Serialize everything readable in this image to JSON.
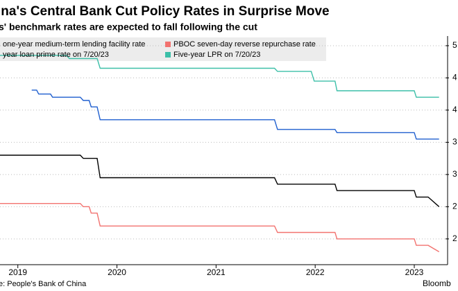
{
  "chart_data": {
    "type": "line",
    "title": "ina's Central Bank Cut Policy Rates in Surprise Move",
    "subtitle": "s' benchmark rates are expected to fall following the cut",
    "source": "e: People's Bank of China",
    "brand": "Bloomb",
    "xlim": [
      2018.82,
      2023.35
    ],
    "xticks": [
      2019,
      2020,
      2021,
      2022,
      2023
    ],
    "ylim": [
      1.6,
      5.15
    ],
    "yticks": [
      {
        "value": 5,
        "label": "5"
      },
      {
        "value": 4.5,
        "label": "4"
      },
      {
        "value": 4,
        "label": "4"
      },
      {
        "value": 3.5,
        "label": "3"
      },
      {
        "value": 3,
        "label": "3"
      },
      {
        "value": 2.5,
        "label": "2"
      },
      {
        "value": 2,
        "label": "2"
      }
    ],
    "grid": true,
    "series": [
      {
        "name": "one-year medium-term lending facility rate",
        "color": "#000000",
        "x": [
          2018.82,
          2019.63,
          2019.66,
          2019.8,
          2019.83,
          2021.59,
          2021.62,
          2022.2,
          2022.22,
          2023.0,
          2023.02,
          2023.14,
          2023.25
        ],
        "values": [
          3.3,
          3.3,
          3.25,
          3.25,
          2.95,
          2.95,
          2.85,
          2.85,
          2.75,
          2.75,
          2.65,
          2.65,
          2.5
        ]
      },
      {
        "name": "PBOC seven-day reverse repurchase rate",
        "color": "#f2726f",
        "x": [
          2018.82,
          2019.63,
          2019.66,
          2019.72,
          2019.74,
          2019.8,
          2019.83,
          2021.59,
          2021.62,
          2022.2,
          2022.22,
          2023.0,
          2023.02,
          2023.14,
          2023.25
        ],
        "values": [
          2.55,
          2.55,
          2.5,
          2.5,
          2.4,
          2.4,
          2.2,
          2.2,
          2.1,
          2.1,
          2.0,
          2.0,
          1.9,
          1.9,
          1.8
        ]
      },
      {
        "name": "year loan prime rate on 7/20/23",
        "color": "#1f5fcf",
        "x": [
          2019.14,
          2019.19,
          2019.21,
          2019.33,
          2019.35,
          2019.63,
          2019.66,
          2019.72,
          2019.74,
          2019.8,
          2019.83,
          2021.59,
          2021.62,
          2022.2,
          2022.22,
          2023.0,
          2023.02,
          2023.25
        ],
        "values": [
          4.31,
          4.31,
          4.25,
          4.25,
          4.2,
          4.2,
          4.15,
          4.15,
          4.05,
          4.05,
          3.85,
          3.85,
          3.7,
          3.7,
          3.65,
          3.65,
          3.55,
          3.55
        ]
      },
      {
        "name": "Five-year LPR on 7/20/23",
        "color": "#3cbfa8",
        "x": [
          2018.82,
          2019.49,
          2019.52,
          2019.8,
          2019.83,
          2021.59,
          2021.62,
          2021.96,
          2021.99,
          2022.2,
          2022.22,
          2023.0,
          2023.02,
          2023.25
        ],
        "values": [
          4.85,
          4.85,
          4.8,
          4.8,
          4.65,
          4.65,
          4.6,
          4.6,
          4.45,
          4.45,
          4.3,
          4.3,
          4.2,
          4.2
        ]
      }
    ]
  }
}
